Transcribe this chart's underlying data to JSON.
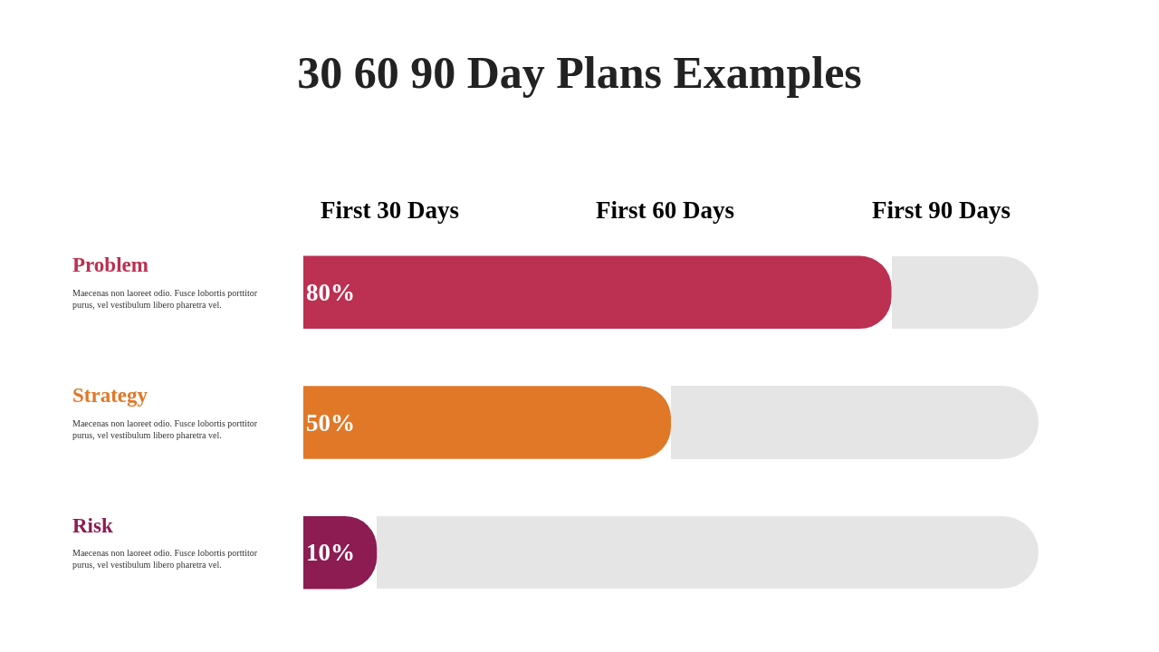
{
  "chart_data": {
    "type": "bar",
    "orientation": "horizontal",
    "title": "30 60 90 Day Plans Examples",
    "categories": [
      "Problem",
      "Strategy",
      "Risk"
    ],
    "values": [
      80,
      50,
      10
    ],
    "colors": [
      "#bc3052",
      "#e07828",
      "#8c1c52"
    ],
    "value_labels": [
      "80%",
      "50%",
      "10%"
    ],
    "xlim": [
      0,
      100
    ],
    "annotations": [
      "First 30 Days",
      "First 60 Days",
      "First 90 Days",
      "Maecenas non laoreet odio. Fusce lobortis porttitor purus, vel vestibulum libero pharetra vel.",
      "Maecenas non laoreet odio. Fusce lobortis porttitor purus, vel vestibulum libero pharetra vel.",
      "Maecenas non laoreet odio. Fusce lobortis porttitor purus, vel vestibulum libero pharetra vel."
    ],
    "tick_labels": "y"
  }
}
